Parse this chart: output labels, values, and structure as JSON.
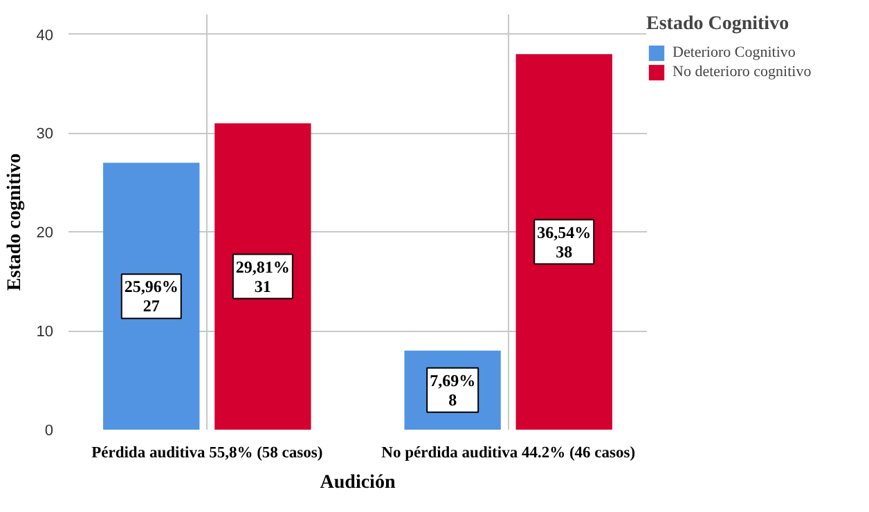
{
  "chart_data": {
    "type": "bar",
    "xlabel": "Audición",
    "ylabel": "Estado cognitivo",
    "legend_title": "Estado Cognitivo",
    "categories": [
      "Pérdida auditiva 55,8% (58 casos)",
      "No pérdida auditiva 44.2% (46 casos)"
    ],
    "series": [
      {
        "name": "Deterioro Cognitivo",
        "color": "#5294e2",
        "values": [
          27,
          8
        ],
        "value_labels": [
          "25,96%\n27",
          "7,69%\n8"
        ]
      },
      {
        "name": "No deterioro cognitivo",
        "color": "#d40030",
        "values": [
          31,
          38
        ],
        "value_labels": [
          "29,81%\n31",
          "36,54%\n38"
        ]
      }
    ],
    "ylim": [
      0,
      42
    ],
    "yticks": [
      0,
      10,
      20,
      30,
      40
    ],
    "grid": true,
    "legend": "top right"
  }
}
